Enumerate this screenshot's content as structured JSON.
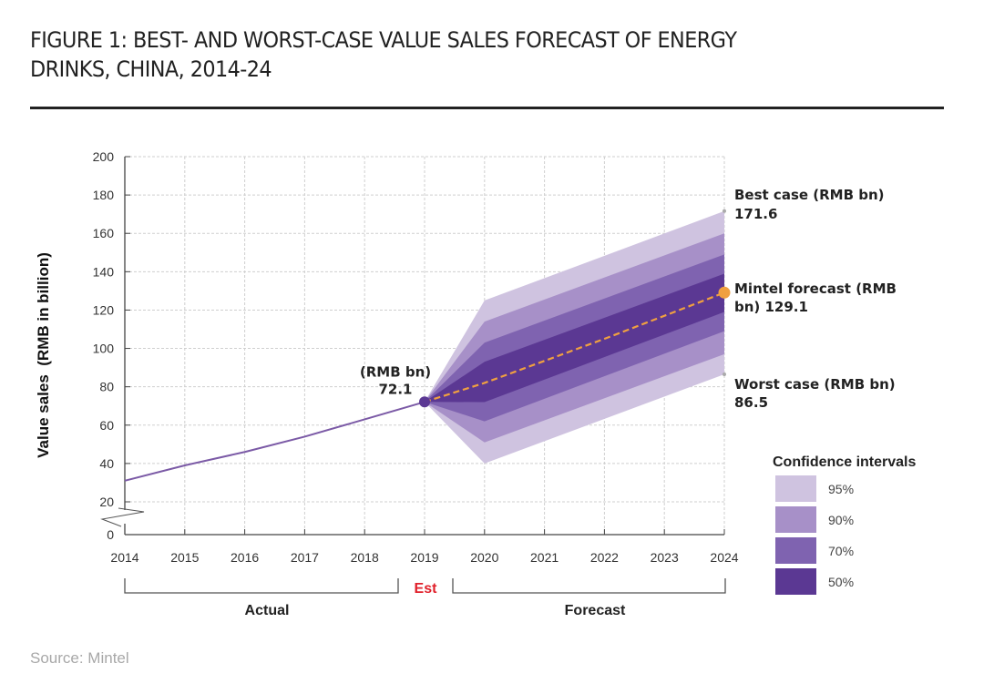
{
  "header": {
    "title_line1": "FIGURE 1: BEST- AND WORST-CASE VALUE SALES FORECAST OF ENERGY",
    "title_line2": "DRINKS, CHINA, 2014-24"
  },
  "source": "Source: Mintel",
  "chart_data": {
    "type": "area",
    "title": "FIGURE 1: BEST- AND WORST-CASE VALUE SALES FORECAST OF ENERGY DRINKS, CHINA, 2014-24",
    "ylabel": "Value sales  (RMB in billion)",
    "xlabel": "",
    "ylim": [
      0,
      200
    ],
    "y_ticks": [
      0,
      20,
      40,
      60,
      80,
      100,
      120,
      140,
      160,
      180,
      200
    ],
    "y_axis_break": true,
    "x_ticks": [
      "2014",
      "2015",
      "2016",
      "2017",
      "2018",
      "2019",
      "2020",
      "2021",
      "2022",
      "2023",
      "2024"
    ],
    "grid": true,
    "series": [
      {
        "name": "Actual",
        "x": [
          2014,
          2015,
          2016,
          2017,
          2018,
          2019
        ],
        "values": [
          31,
          39,
          46,
          54,
          63,
          72.1
        ],
        "color": "#7b5aa6"
      },
      {
        "name": "Mintel forecast",
        "x": [
          2019,
          2020,
          2021,
          2022,
          2023,
          2024
        ],
        "values": [
          72.1,
          82,
          93.5,
          105,
          117,
          129.1
        ],
        "color": "#f0a040",
        "style": "dashed"
      }
    ],
    "confidence_bands": [
      {
        "name": "95%",
        "color": "#cfc3e0",
        "x": [
          2019,
          2020,
          2024
        ],
        "upper": [
          72.1,
          125,
          171.6
        ],
        "lower": [
          72.1,
          40,
          86.5
        ]
      },
      {
        "name": "90%",
        "color": "#a790c8",
        "x": [
          2019,
          2020,
          2024
        ],
        "upper": [
          72.1,
          114,
          160
        ],
        "lower": [
          72.1,
          51,
          97
        ]
      },
      {
        "name": "70%",
        "color": "#7f63b0",
        "x": [
          2019,
          2020,
          2024
        ],
        "upper": [
          72.1,
          103,
          149
        ],
        "lower": [
          72.1,
          62,
          109
        ]
      },
      {
        "name": "50%",
        "color": "#5b3893",
        "x": [
          2019,
          2020,
          2024
        ],
        "upper": [
          72.1,
          93,
          139
        ],
        "lower": [
          72.1,
          72,
          119
        ]
      }
    ],
    "annotations": {
      "est_point": {
        "line1": "(RMB bn)",
        "line2": "72.1",
        "x": 2019,
        "y": 72.1
      },
      "best_case": {
        "line1": "Best case (RMB bn)",
        "line2": "171.6",
        "x": 2024,
        "y": 171.6
      },
      "forecast": {
        "line1": "Mintel forecast (RMB",
        "line2": "bn) 129.1",
        "x": 2024,
        "y": 129.1
      },
      "worst_case": {
        "line1": "Worst case (RMB bn)",
        "line2": "86.5",
        "x": 2024,
        "y": 86.5
      }
    },
    "period_labels": {
      "actual": "Actual",
      "est": "Est",
      "forecast": "Forecast"
    },
    "legend": {
      "title": "Confidence intervals",
      "items": [
        "95%",
        "90%",
        "70%",
        "50%"
      ],
      "position": "bottom-right"
    }
  }
}
